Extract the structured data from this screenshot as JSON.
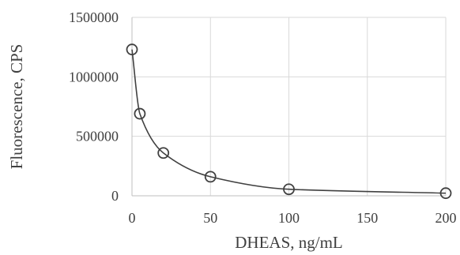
{
  "chart_data": {
    "type": "scatter",
    "title": "",
    "xlabel": "DHEAS, ng/mL",
    "ylabel": "Fluorescence, CPS",
    "xlim": [
      0,
      200
    ],
    "ylim": [
      0,
      1500000
    ],
    "x_ticks": [
      0,
      50,
      100,
      150,
      200
    ],
    "y_ticks": [
      0,
      500000,
      1000000,
      1500000
    ],
    "grid": true,
    "series": [
      {
        "x": [
          0,
          5,
          20,
          50,
          100,
          200
        ],
        "y": [
          1230000,
          690000,
          360000,
          160000,
          55000,
          22000
        ],
        "marker": "open-circle",
        "trendline": true
      }
    ],
    "colors": {
      "series": "#404040",
      "grid": "#d9d9d9",
      "text": "#404040"
    }
  }
}
